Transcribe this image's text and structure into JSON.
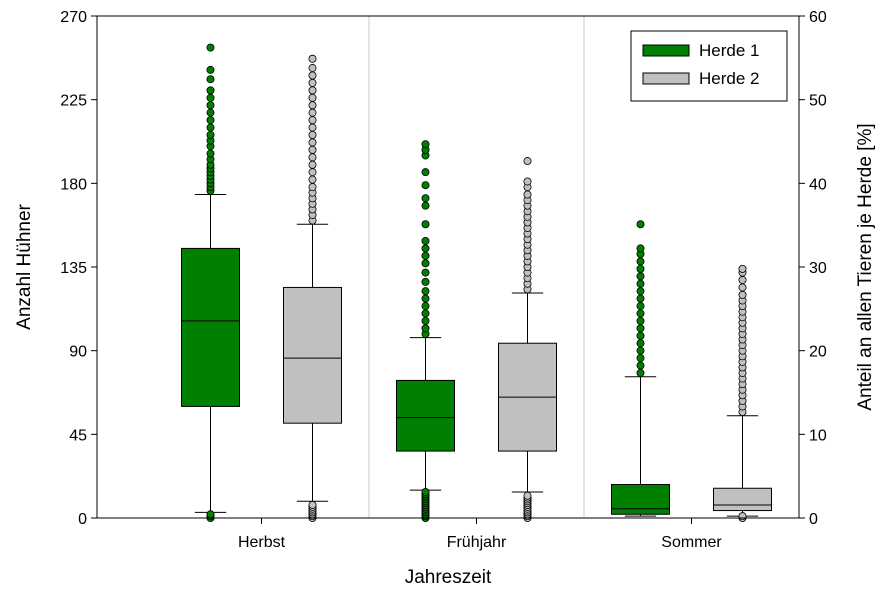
{
  "chart_data": {
    "type": "box",
    "title": "",
    "xlabel": "Jahreszeit",
    "ylabel": "Anzahl Hühner",
    "y2label": "Anteil an allen Tieren je Herde [%]",
    "ylim": [
      0,
      270
    ],
    "yticks": [
      0,
      45,
      90,
      135,
      180,
      225,
      270
    ],
    "y2lim": [
      0,
      60
    ],
    "y2ticks": [
      0,
      10,
      20,
      30,
      40,
      50,
      60
    ],
    "grid": "vertical separators between categories",
    "legend_position": "top-right",
    "categories": [
      "Herbst",
      "Frühjahr",
      "Sommer"
    ],
    "series": [
      {
        "name": "Herde 1",
        "color": "#008000",
        "boxes": [
          {
            "whisker_low": 3,
            "q1": 60,
            "median": 106,
            "q3": 145,
            "whisker_high": 174,
            "outliers_high": [
              176,
              178,
              180,
              182,
              184,
              186,
              188,
              190,
              193,
              196,
              200,
              203,
              206,
              210,
              214,
              218,
              222,
              226,
              230,
              236,
              241,
              253
            ],
            "outliers_low": [
              0,
              1,
              2
            ]
          },
          {
            "whisker_low": 15,
            "q1": 36,
            "median": 54,
            "q3": 74,
            "whisker_high": 97,
            "outliers_high": [
              99,
              102,
              106,
              110,
              114,
              118,
              122,
              127,
              132,
              137,
              141,
              145,
              149,
              158,
              168,
              172,
              179,
              186,
              195,
              198,
              201
            ],
            "outliers_low": [
              0,
              1,
              2,
              3,
              4,
              5,
              6,
              7,
              8,
              9,
              10,
              11,
              12,
              13,
              14
            ]
          },
          {
            "whisker_low": 1,
            "q1": 2,
            "median": 5,
            "q3": 18,
            "whisker_high": 76,
            "outliers_high": [
              78,
              82,
              86,
              90,
              94,
              98,
              102,
              106,
              110,
              114,
              118,
              122,
              126,
              130,
              134,
              138,
              142,
              145,
              158
            ],
            "outliers_low": []
          }
        ]
      },
      {
        "name": "Herde 2",
        "color": "#c0c0c0",
        "boxes": [
          {
            "whisker_low": 9,
            "q1": 51,
            "median": 86,
            "q3": 124,
            "whisker_high": 158,
            "outliers_high": [
              160,
              163,
              166,
              169,
              172,
              175,
              178,
              182,
              186,
              190,
              194,
              198,
              202,
              206,
              210,
              214,
              218,
              222,
              226,
              230,
              234,
              238,
              242,
              247
            ],
            "outliers_low": [
              0,
              1,
              2,
              3,
              4,
              5,
              6,
              7
            ]
          },
          {
            "whisker_low": 14,
            "q1": 36,
            "median": 65,
            "q3": 94,
            "whisker_high": 121,
            "outliers_high": [
              123,
              126,
              129,
              132,
              135,
              138,
              141,
              144,
              147,
              150,
              153,
              156,
              159,
              162,
              165,
              168,
              171,
              174,
              178,
              181,
              192
            ],
            "outliers_low": [
              0,
              1,
              2,
              3,
              4,
              5,
              6,
              7,
              8,
              9,
              10,
              11,
              12
            ]
          },
          {
            "whisker_low": 1,
            "q1": 4,
            "median": 7,
            "q3": 16,
            "whisker_high": 55,
            "outliers_high": [
              57,
              60,
              63,
              66,
              69,
              72,
              75,
              78,
              81,
              84,
              87,
              90,
              93,
              96,
              99,
              102,
              105,
              108,
              111,
              114,
              117,
              120,
              124,
              128,
              132,
              134
            ],
            "outliers_low": [
              0,
              1
            ]
          }
        ]
      }
    ]
  }
}
